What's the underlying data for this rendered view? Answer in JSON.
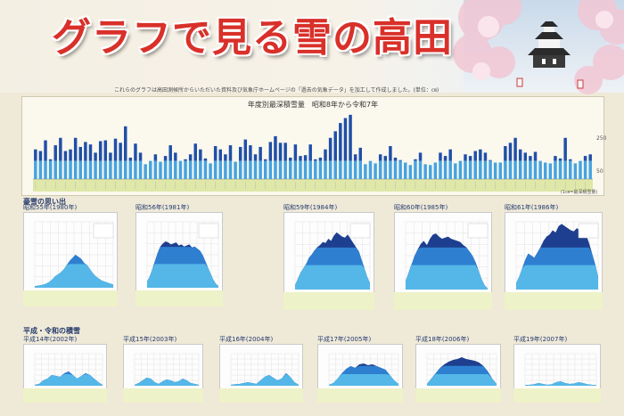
{
  "poster": {
    "title": "グラフで見る雪の高田",
    "subtitle": "これらのグラフは高田測候所からいただいた資料及び気象庁ホームページの「過去の気象データ」を加工して作成しました。(単位：㎝)",
    "section_heavy_snow": "豪雪の思い出",
    "section_recent": "平成・令和の積雪"
  },
  "colors": {
    "title_red": "#d9302a",
    "bar_dark": "#1f4fa8",
    "bar_light": "#46a3e0",
    "axis_band": "#dfe8a8",
    "area_dark": "#1e3f8f",
    "area_mid": "#2e7fd0",
    "area_light": "#54b7e8",
    "notes_band": "#eef2c8"
  },
  "chart_data": [
    {
      "type": "bar",
      "title": "年度別最深積雪量　昭和8年から令和7年",
      "ylim": [
        0,
        400
      ],
      "yticks": [
        250,
        50
      ],
      "grid": false,
      "values": [
        180,
        170,
        235,
        120,
        205,
        250,
        170,
        180,
        250,
        195,
        225,
        210,
        160,
        230,
        235,
        160,
        245,
        220,
        320,
        130,
        215,
        160,
        90,
        110,
        150,
        105,
        140,
        205,
        160,
        110,
        120,
        150,
        215,
        180,
        125,
        95,
        200,
        180,
        150,
        205,
        105,
        195,
        240,
        205,
        150,
        195,
        120,
        225,
        260,
        220,
        220,
        130,
        210,
        140,
        145,
        210,
        120,
        130,
        180,
        250,
        290,
        340,
        370,
        390,
        150,
        190,
        90,
        110,
        95,
        150,
        140,
        200,
        130,
        115,
        100,
        85,
        120,
        160,
        90,
        85,
        100,
        160,
        140,
        180,
        95,
        110,
        150,
        140,
        170,
        180,
        160,
        115,
        100,
        100,
        200,
        220,
        250,
        180,
        160,
        140,
        165,
        110,
        100,
        95,
        140,
        125,
        250,
        120,
        95,
        110,
        140,
        150
      ],
      "note_right": "(1㎝=最深積雪量)"
    },
    {
      "type": "area",
      "title": "昭和55年(1980年)",
      "values": [
        8,
        10,
        12,
        15,
        20,
        28,
        40,
        55,
        65,
        75,
        90,
        110,
        130,
        145,
        160,
        150,
        140,
        120,
        110,
        90,
        70,
        55,
        45,
        35,
        30,
        25,
        20,
        15
      ]
    },
    {
      "type": "area",
      "title": "昭和56年(1981年)",
      "values": [
        30,
        55,
        90,
        130,
        170,
        200,
        215,
        225,
        220,
        210,
        215,
        220,
        205,
        210,
        200,
        205,
        210,
        195,
        200,
        190,
        180,
        160,
        130,
        100,
        70,
        40,
        20,
        8
      ]
    },
    {
      "type": "area",
      "title": "昭和59年(1984年)",
      "values": [
        20,
        50,
        80,
        100,
        120,
        150,
        165,
        185,
        200,
        210,
        225,
        220,
        240,
        230,
        255,
        270,
        260,
        250,
        245,
        260,
        240,
        220,
        200,
        180,
        140,
        100,
        60,
        30
      ]
    },
    {
      "type": "area",
      "title": "昭和60年(1985年)",
      "values": [
        40,
        80,
        120,
        160,
        190,
        215,
        230,
        210,
        240,
        260,
        265,
        250,
        240,
        245,
        250,
        240,
        235,
        230,
        225,
        210,
        200,
        180,
        160,
        130,
        90,
        50,
        20,
        5
      ]
    },
    {
      "type": "area",
      "title": "昭和61年(1986年)",
      "values": [
        30,
        60,
        100,
        140,
        170,
        160,
        150,
        175,
        200,
        230,
        250,
        260,
        280,
        270,
        300,
        310,
        300,
        290,
        280,
        275,
        290,
        280,
        300,
        260,
        220,
        170,
        120,
        60
      ]
    },
    {
      "type": "area",
      "title": "平成14年(2002年)",
      "values": [
        5,
        10,
        30,
        40,
        60,
        55,
        50,
        70,
        80,
        60,
        40,
        55,
        70,
        60,
        40,
        20,
        5
      ]
    },
    {
      "type": "area",
      "title": "平成15年(2003年)",
      "values": [
        5,
        15,
        30,
        45,
        40,
        20,
        10,
        25,
        35,
        30,
        20,
        25,
        40,
        30,
        15,
        10,
        5
      ]
    },
    {
      "type": "area",
      "title": "平成16年(2004年)",
      "values": [
        5,
        8,
        10,
        15,
        20,
        15,
        10,
        30,
        50,
        60,
        45,
        30,
        40,
        70,
        50,
        20,
        5
      ]
    },
    {
      "type": "area",
      "title": "平成17年(2005年)",
      "values": [
        5,
        15,
        40,
        70,
        95,
        110,
        100,
        120,
        125,
        115,
        120,
        110,
        100,
        90,
        60,
        30,
        10
      ]
    },
    {
      "type": "area",
      "title": "平成18年(2006年)",
      "values": [
        10,
        40,
        70,
        100,
        120,
        135,
        145,
        150,
        160,
        150,
        145,
        140,
        130,
        110,
        80,
        40,
        10
      ]
    },
    {
      "type": "area",
      "title": "平成19年(2007年)",
      "values": [
        3,
        5,
        8,
        15,
        10,
        5,
        8,
        20,
        25,
        15,
        10,
        12,
        20,
        15,
        8,
        5,
        3
      ]
    }
  ]
}
